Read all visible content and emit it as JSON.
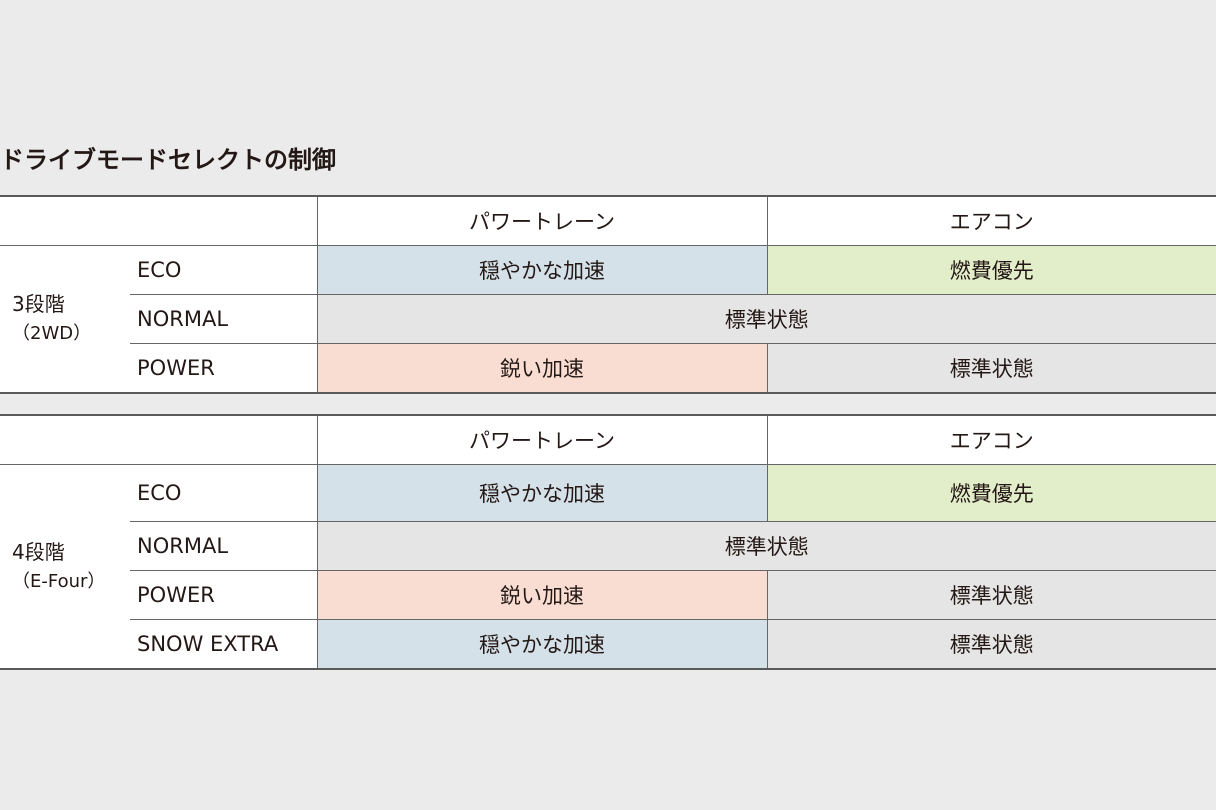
{
  "title": "ドライブモードセレクトの制御",
  "headers": {
    "powertrain": "パワートレーン",
    "aircon": "エアコン"
  },
  "colors": {
    "gentle": "#d4e1e9",
    "economy": "#e2edc9",
    "standard": "#e5e5e5",
    "sharp": "#f9ddd2",
    "background": "#ebebeb"
  },
  "table1": {
    "group": "3段階",
    "group_sub": "（2WD）",
    "rows": [
      {
        "mode": "ECO",
        "powertrain": "穏やかな加速",
        "aircon": "燃費優先"
      },
      {
        "mode": "NORMAL",
        "both": "標準状態"
      },
      {
        "mode": "POWER",
        "powertrain": "鋭い加速",
        "aircon": "標準状態"
      }
    ]
  },
  "table2": {
    "group": "4段階",
    "group_sub": "（E-Four）",
    "rows": [
      {
        "mode": "ECO",
        "powertrain": "穏やかな加速",
        "aircon": "燃費優先"
      },
      {
        "mode": "NORMAL",
        "both": "標準状態"
      },
      {
        "mode": "POWER",
        "powertrain": "鋭い加速",
        "aircon": "標準状態"
      },
      {
        "mode": "SNOW EXTRA",
        "powertrain": "穏やかな加速",
        "aircon": "標準状態"
      }
    ]
  }
}
